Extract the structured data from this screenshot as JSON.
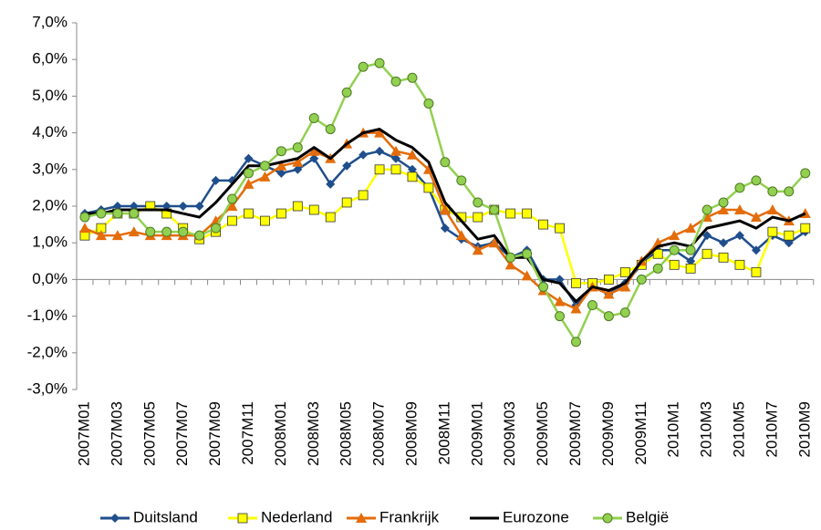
{
  "chart_data": {
    "type": "line",
    "categories": [
      "2007M01",
      null,
      "2007M03",
      null,
      "2007M05",
      null,
      "2007M07",
      null,
      "2007M09",
      null,
      "2007M11",
      null,
      "2008M01",
      null,
      "2008M03",
      null,
      "2008M05",
      null,
      "2008M07",
      null,
      "2008M09",
      null,
      "2008M11",
      null,
      "2009M01",
      null,
      "2009M03",
      null,
      "2009M05",
      null,
      "2009M07",
      null,
      "2009M09",
      null,
      "2009M11",
      null,
      "2010M1",
      null,
      "2010M3",
      null,
      "2010M5",
      null,
      "2010M7",
      null,
      "2010M9"
    ],
    "series": [
      {
        "name": "Duitsland",
        "color": "#1f4e8c",
        "marker": "diamond",
        "values": [
          1.8,
          1.9,
          2.0,
          2.0,
          2.0,
          2.0,
          2.0,
          2.0,
          2.7,
          2.7,
          3.3,
          3.1,
          2.9,
          3.0,
          3.3,
          2.6,
          3.1,
          3.4,
          3.5,
          3.3,
          3.0,
          2.5,
          1.4,
          1.1,
          0.9,
          1.0,
          0.6,
          0.8,
          0.0,
          0.0,
          -0.7,
          -0.2,
          -0.4,
          -0.1,
          0.4,
          0.8,
          0.8,
          0.5,
          1.2,
          1.0,
          1.2,
          0.8,
          1.2,
          1.0,
          1.3
        ]
      },
      {
        "name": "Nederland",
        "color": "#ffff00",
        "marker": "square",
        "values": [
          1.2,
          1.4,
          1.8,
          1.8,
          2.0,
          1.8,
          1.4,
          1.1,
          1.3,
          1.6,
          1.8,
          1.6,
          1.8,
          2.0,
          1.9,
          1.7,
          2.1,
          2.3,
          3.0,
          3.0,
          2.8,
          2.5,
          1.9,
          1.7,
          1.7,
          1.9,
          1.8,
          1.8,
          1.5,
          1.4,
          -0.1,
          -0.1,
          0.0,
          0.2,
          0.4,
          0.7,
          0.4,
          0.3,
          0.7,
          0.6,
          0.4,
          0.2,
          1.3,
          1.2,
          1.4
        ]
      },
      {
        "name": "Frankrijk",
        "color": "#e46c0a",
        "marker": "triangle",
        "values": [
          1.4,
          1.2,
          1.2,
          1.3,
          1.2,
          1.2,
          1.2,
          1.2,
          1.6,
          2.0,
          2.6,
          2.8,
          3.1,
          3.2,
          3.5,
          3.3,
          3.7,
          4.0,
          4.0,
          3.5,
          3.4,
          3.0,
          1.9,
          1.2,
          0.8,
          1.0,
          0.4,
          0.1,
          -0.3,
          -0.6,
          -0.8,
          -0.2,
          -0.4,
          -0.2,
          0.5,
          1.0,
          1.2,
          1.4,
          1.7,
          1.9,
          1.9,
          1.7,
          1.9,
          1.6,
          1.8
        ]
      },
      {
        "name": "Eurozone",
        "color": "#000000",
        "marker": "none",
        "values": [
          1.8,
          1.8,
          1.9,
          1.9,
          1.9,
          1.9,
          1.8,
          1.7,
          2.1,
          2.6,
          3.1,
          3.1,
          3.2,
          3.3,
          3.6,
          3.3,
          3.7,
          4.0,
          4.1,
          3.8,
          3.6,
          3.2,
          2.1,
          1.6,
          1.1,
          1.2,
          0.6,
          0.6,
          0.0,
          -0.1,
          -0.6,
          -0.2,
          -0.3,
          -0.1,
          0.5,
          0.9,
          1.0,
          0.9,
          1.4,
          1.5,
          1.6,
          1.4,
          1.7,
          1.6,
          1.8
        ]
      },
      {
        "name": "België",
        "color": "#92d050",
        "marker": "circle",
        "values": [
          1.7,
          1.8,
          1.8,
          1.8,
          1.3,
          1.3,
          1.3,
          1.2,
          1.4,
          2.2,
          2.9,
          3.1,
          3.5,
          3.6,
          4.4,
          4.1,
          5.1,
          5.8,
          5.9,
          5.4,
          5.5,
          4.8,
          3.2,
          2.7,
          2.1,
          1.9,
          0.6,
          0.7,
          -0.2,
          -1.0,
          -1.7,
          -0.7,
          -1.0,
          -0.9,
          0.0,
          0.3,
          0.8,
          0.8,
          1.9,
          2.1,
          2.5,
          2.7,
          2.4,
          2.4,
          2.9
        ]
      }
    ],
    "ylim": [
      -3,
      7
    ],
    "yticks": [
      {
        "value": -3,
        "label": "-3,0%"
      },
      {
        "value": -2,
        "label": "-2,0%"
      },
      {
        "value": -1,
        "label": "-1,0%"
      },
      {
        "value": 0,
        "label": "0,0%"
      },
      {
        "value": 1,
        "label": "1,0%"
      },
      {
        "value": 2,
        "label": "2,0%"
      },
      {
        "value": 3,
        "label": "3,0%"
      },
      {
        "value": 4,
        "label": "4,0%"
      },
      {
        "value": 5,
        "label": "5,0%"
      },
      {
        "value": 6,
        "label": "6,0%"
      },
      {
        "value": 7,
        "label": "7,0%"
      }
    ],
    "grid": false,
    "legend": "bottom"
  }
}
